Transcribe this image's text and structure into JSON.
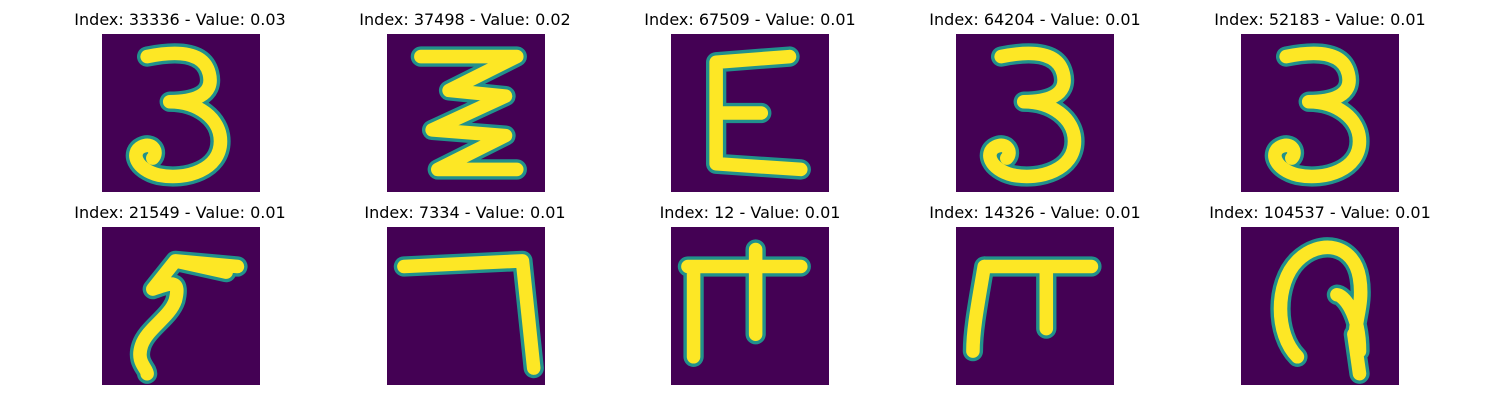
{
  "figure": {
    "panels": [
      {
        "title": "Index: 33336 - Value: 0.03",
        "glyph": "digit-3"
      },
      {
        "title": "Index: 37498 - Value: 0.02",
        "glyph": "zigzag-3"
      },
      {
        "title": "Index: 67509 - Value: 0.01",
        "glyph": "letter-E"
      },
      {
        "title": "Index: 64204 - Value: 0.01",
        "glyph": "digit-3"
      },
      {
        "title": "Index: 52183 - Value: 0.01",
        "glyph": "digit-3"
      },
      {
        "title": "Index: 21549 - Value: 0.01",
        "glyph": "curved-hook"
      },
      {
        "title": "Index: 7334 - Value: 0.01",
        "glyph": "digit-7"
      },
      {
        "title": "Index: 12 - Value: 0.01",
        "glyph": "pi-like"
      },
      {
        "title": "Index: 14326 - Value: 0.01",
        "glyph": "pi-like"
      },
      {
        "title": "Index: 104537 - Value: 0.01",
        "glyph": "loop"
      }
    ],
    "colors": {
      "background": "#440154",
      "stroke_outer": "#21918c",
      "stroke_inner": "#fde725"
    }
  }
}
